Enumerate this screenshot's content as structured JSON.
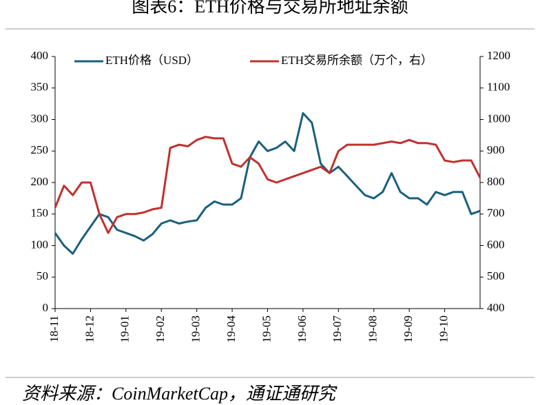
{
  "chart_data": {
    "type": "line",
    "title": "图表6：ETH价格与交易所地址余额",
    "source": "资料来源：CoinMarketCap，通证通研究",
    "categories": [
      "18-11",
      null,
      null,
      null,
      "18-12",
      null,
      null,
      null,
      "19-01",
      null,
      null,
      null,
      "19-02",
      null,
      null,
      null,
      "19-03",
      null,
      null,
      null,
      "19-04",
      null,
      null,
      null,
      "19-05",
      null,
      null,
      null,
      "19-06",
      null,
      null,
      null,
      "19-07",
      null,
      null,
      null,
      "19-08",
      null,
      null,
      null,
      "19-09",
      null,
      null,
      null,
      "19-10",
      null,
      null,
      null,
      null
    ],
    "series": [
      {
        "name": "ETH价格（USD）",
        "color": "#1a5f7d",
        "axis": "y",
        "values": [
          120,
          100,
          87,
          110,
          130,
          150,
          145,
          125,
          120,
          115,
          108,
          118,
          135,
          140,
          135,
          138,
          140,
          160,
          170,
          165,
          165,
          175,
          240,
          265,
          250,
          255,
          265,
          250,
          310,
          295,
          230,
          215,
          225,
          210,
          195,
          180,
          175,
          185,
          215,
          185,
          175,
          175,
          165,
          185,
          180,
          185,
          185,
          150,
          155
        ]
      },
      {
        "name": "ETH交易所余额（万个，右）",
        "color": "#c0302e",
        "axis": "y2",
        "values": [
          720,
          790,
          760,
          800,
          800,
          700,
          640,
          690,
          700,
          700,
          705,
          715,
          720,
          910,
          920,
          915,
          935,
          945,
          940,
          940,
          860,
          850,
          880,
          860,
          810,
          800,
          810,
          820,
          830,
          840,
          850,
          830,
          900,
          920,
          920,
          920,
          920,
          925,
          930,
          925,
          935,
          925,
          925,
          920,
          870,
          865,
          870,
          870,
          815
        ]
      }
    ],
    "ylim": [
      0,
      400
    ],
    "yticks": [
      0,
      50,
      100,
      150,
      200,
      250,
      300,
      350,
      400
    ],
    "y2lim": [
      400,
      1200
    ],
    "y2ticks": [
      400,
      500,
      600,
      700,
      800,
      900,
      1000,
      1100,
      1200
    ],
    "legend": "top"
  }
}
